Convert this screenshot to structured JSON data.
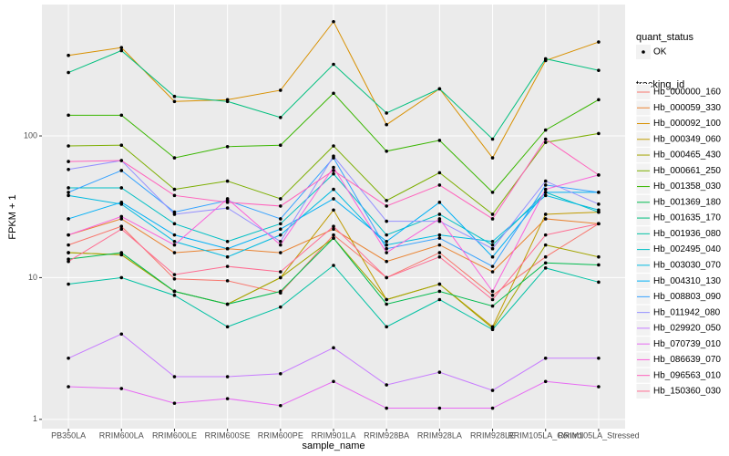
{
  "chart_data": {
    "type": "line",
    "log_y": true,
    "grid": true,
    "xlabel": "sample_name",
    "ylabel": "FPKM + 1",
    "categories": [
      "PB350LA",
      "RRIM600LA",
      "RRIM600LE",
      "RRIM600SE",
      "RRIM600PE",
      "RRIM901LA",
      "RRIM928BA",
      "RRIM928LA",
      "RRIM928LE",
      "RRIM105LA_Control",
      "RRIM105LA_Stressed"
    ],
    "ylim": [
      0.86,
      845
    ],
    "yticks": [
      1,
      10,
      100
    ],
    "point_legend": {
      "title": "quant_status",
      "labels": [
        "OK"
      ]
    },
    "legend_title": "tracking_id",
    "series": [
      {
        "name": "Hb_000000_160",
        "color": "#F8766D",
        "values": [
          17,
          23,
          9.8,
          9.5,
          7.8,
          20,
          10,
          15,
          7.5,
          14,
          24
        ]
      },
      {
        "name": "Hb_000059_330",
        "color": "#EA8331",
        "values": [
          20,
          26,
          15,
          16,
          15,
          22,
          13,
          17,
          11,
          26,
          24
        ]
      },
      {
        "name": "Hb_000092_100",
        "color": "#D89000",
        "values": [
          370,
          420,
          175,
          180,
          210,
          640,
          120,
          215,
          70,
          340,
          460
        ]
      },
      {
        "name": "Hb_000349_060",
        "color": "#C09B00",
        "values": [
          15,
          14.5,
          8,
          6.5,
          10,
          30,
          7,
          9,
          4.5,
          28,
          29
        ]
      },
      {
        "name": "Hb_000465_430",
        "color": "#A3A500",
        "values": [
          15,
          14.5,
          8,
          6.5,
          10,
          19,
          7,
          9,
          4.4,
          17,
          14
        ]
      },
      {
        "name": "Hb_000661_250",
        "color": "#7CAE00",
        "values": [
          85,
          86,
          42,
          48,
          36,
          85,
          35,
          55,
          28,
          90,
          104
        ]
      },
      {
        "name": "Hb_001358_030",
        "color": "#39B600",
        "values": [
          140,
          140,
          70,
          84,
          86,
          200,
          78,
          93,
          40,
          110,
          180
        ]
      },
      {
        "name": "Hb_001369_180",
        "color": "#00BB4E",
        "values": [
          13.5,
          15,
          8,
          6.5,
          8,
          19,
          6.5,
          8,
          6.3,
          12.7,
          12.3
        ]
      },
      {
        "name": "Hb_001635_170",
        "color": "#00BF7D",
        "values": [
          280,
          400,
          190,
          175,
          135,
          320,
          145,
          215,
          95,
          350,
          290
        ]
      },
      {
        "name": "Hb_001936_080",
        "color": "#00C1A3",
        "values": [
          9,
          10,
          7.5,
          4.5,
          6.2,
          12.2,
          4.5,
          7,
          4.3,
          11.7,
          9.3
        ]
      },
      {
        "name": "Hb_002495_040",
        "color": "#00BFC4",
        "values": [
          43,
          43,
          24,
          18,
          24,
          54,
          20,
          28,
          17,
          40,
          29
        ]
      },
      {
        "name": "Hb_003030_070",
        "color": "#00BAE0",
        "values": [
          38,
          33,
          18,
          14,
          20,
          42,
          17,
          20,
          18,
          38,
          30
        ]
      },
      {
        "name": "Hb_004310_130",
        "color": "#00B0F6",
        "values": [
          26,
          34,
          20,
          16,
          22,
          36,
          18,
          34,
          14,
          40,
          40
        ]
      },
      {
        "name": "Hb_008803_090",
        "color": "#35A2FF",
        "values": [
          40,
          57,
          29,
          35,
          26,
          70,
          16,
          19,
          12,
          45,
          40
        ]
      },
      {
        "name": "Hb_011942_080",
        "color": "#9590FF",
        "values": [
          58,
          67,
          28,
          31,
          18,
          72,
          25,
          25,
          16,
          48,
          33
        ]
      },
      {
        "name": "Hb_029920_050",
        "color": "#C77CFF",
        "values": [
          2.7,
          4.0,
          2.0,
          2.0,
          2.1,
          3.2,
          1.75,
          2.15,
          1.6,
          2.7,
          2.7
        ]
      },
      {
        "name": "Hb_070739_010",
        "color": "#E76BF3",
        "values": [
          1.7,
          1.65,
          1.3,
          1.4,
          1.25,
          1.85,
          1.2,
          1.2,
          1.2,
          1.85,
          1.7
        ]
      },
      {
        "name": "Hb_086639_070",
        "color": "#FA62DB",
        "values": [
          20,
          27,
          17,
          36,
          17,
          60,
          15,
          26,
          8,
          42,
          53
        ]
      },
      {
        "name": "Hb_096563_010",
        "color": "#FF62BC",
        "values": [
          66,
          67,
          38,
          34,
          32,
          57,
          32,
          45,
          26,
          95,
          53
        ]
      },
      {
        "name": "Hb_150360_030",
        "color": "#FF6C91",
        "values": [
          13,
          22,
          10.5,
          12,
          11,
          23,
          10,
          14,
          7,
          20,
          24
        ]
      }
    ]
  }
}
